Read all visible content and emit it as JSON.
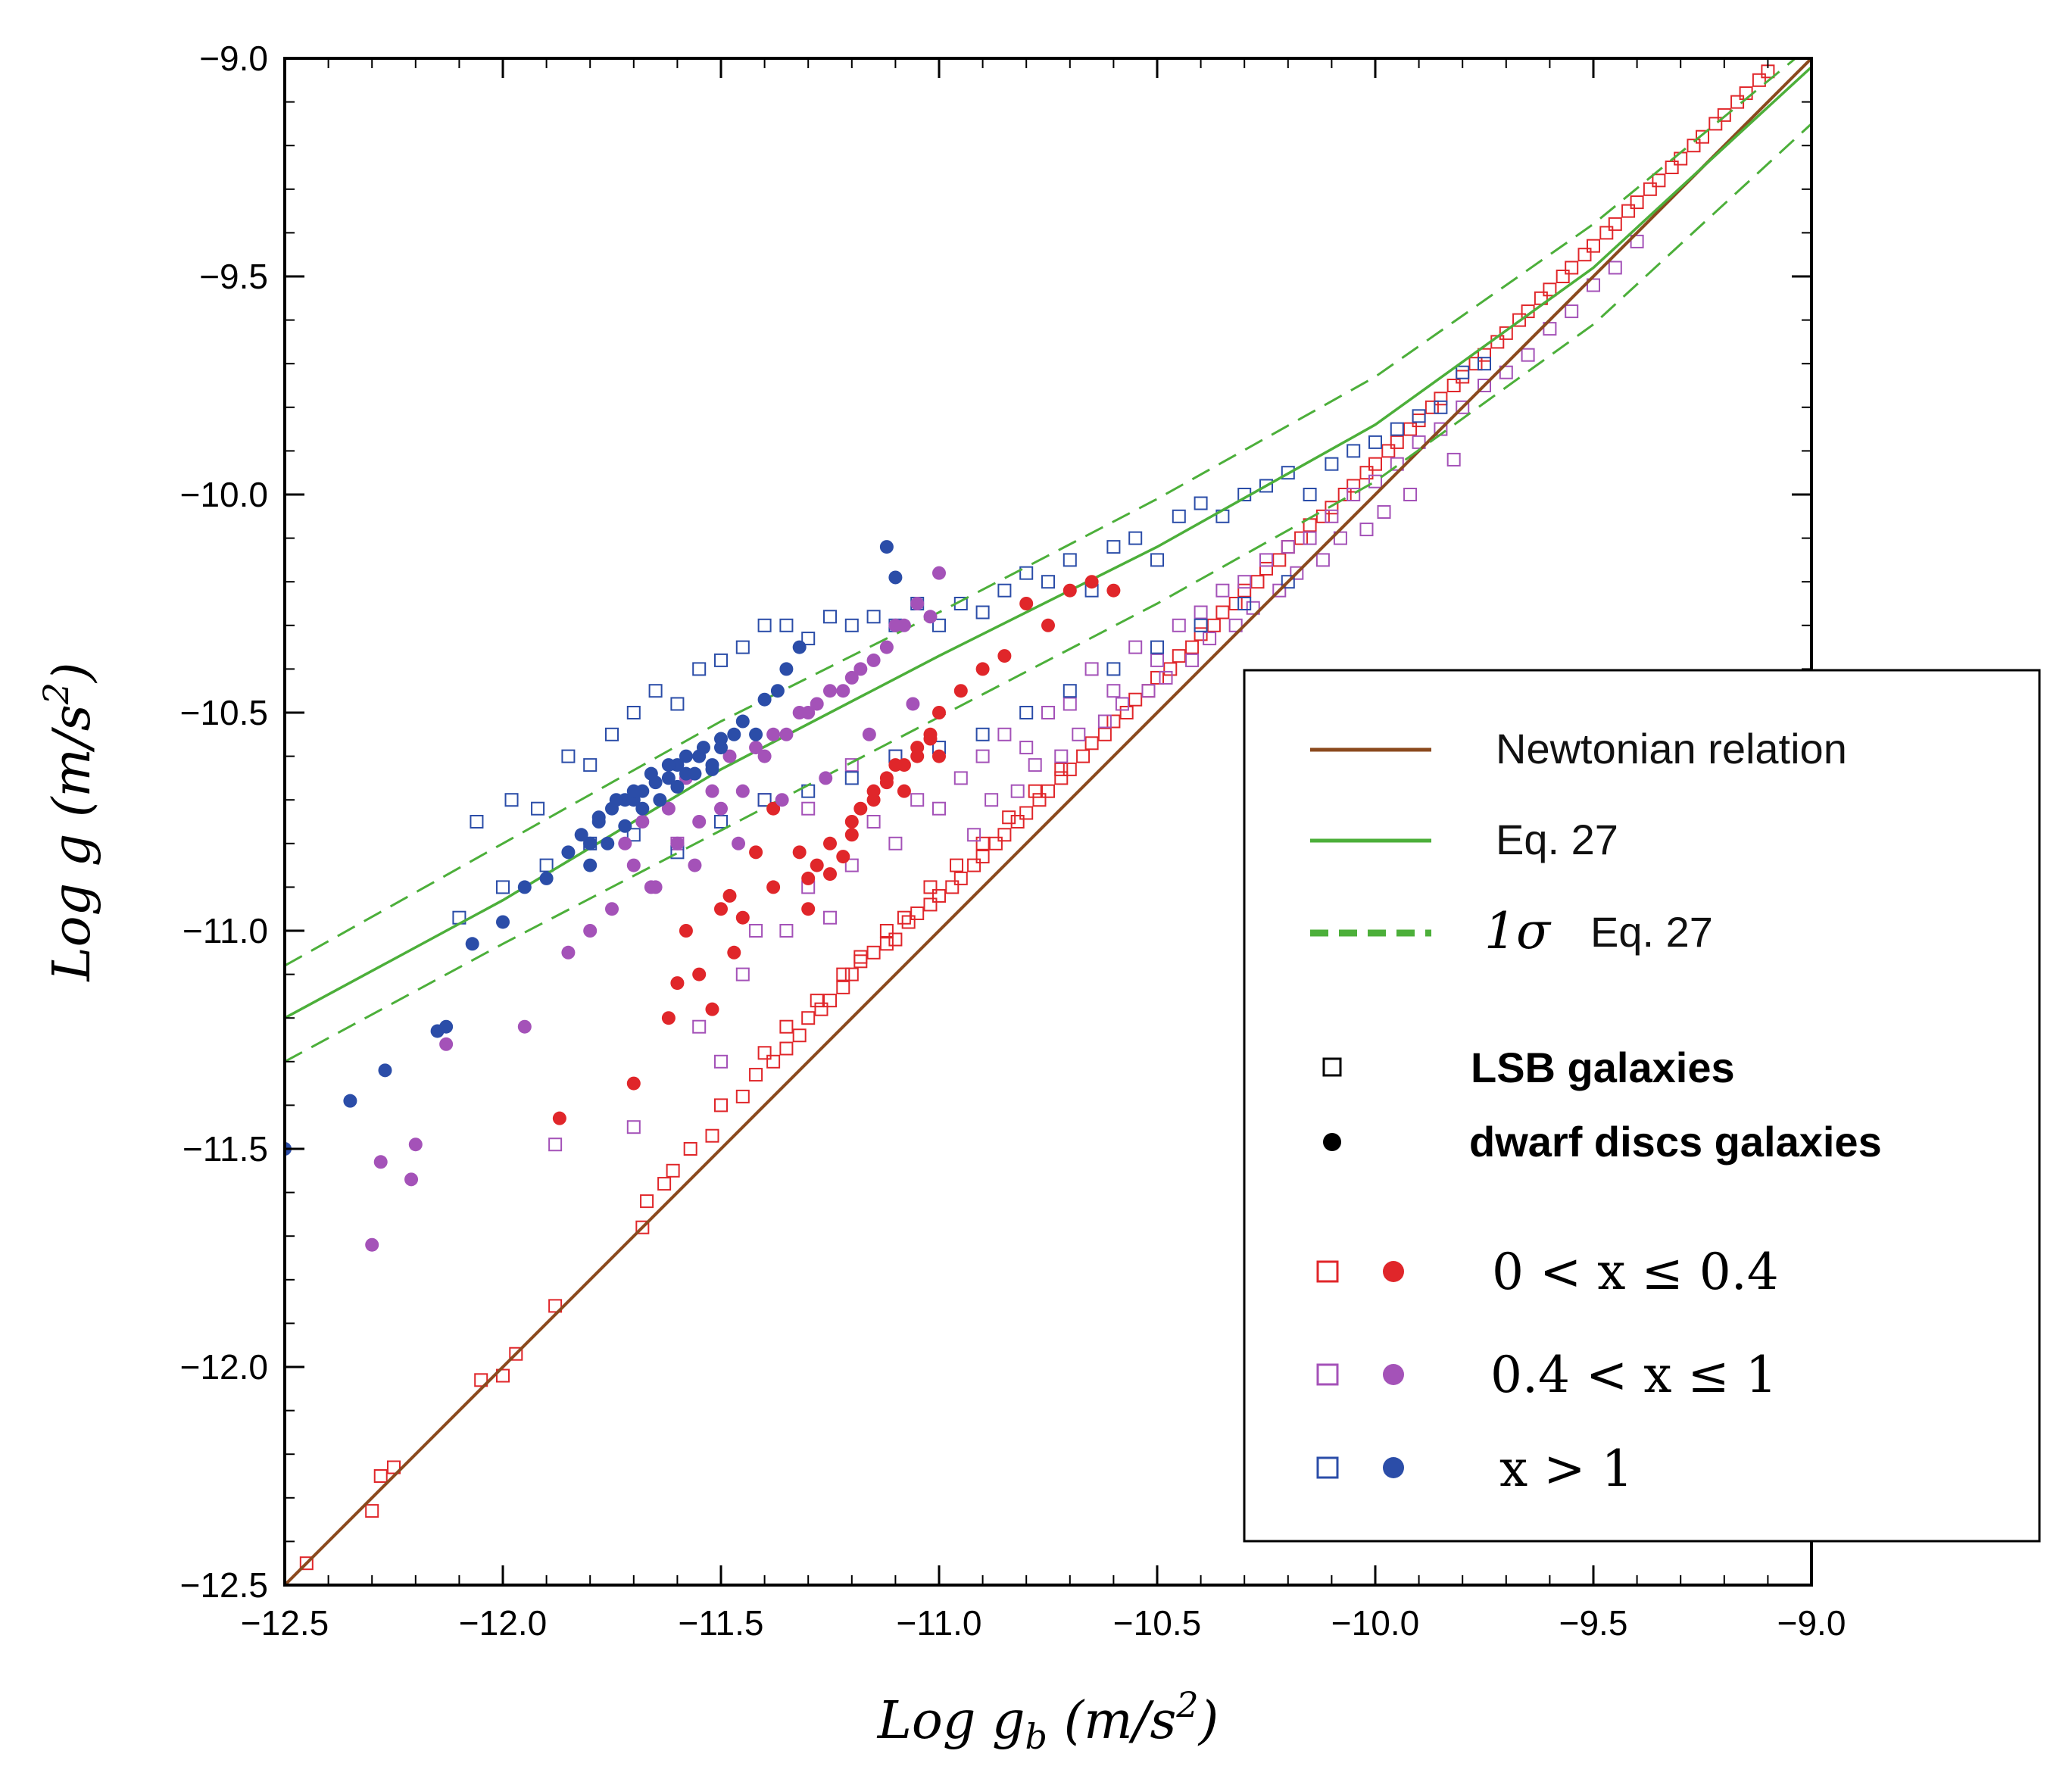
{
  "chart_data": {
    "type": "scatter",
    "xlabel": "Log g_b (m/s^2)",
    "ylabel": "Log g (m/s^2)",
    "xlabel_parts": {
      "main": "Log g",
      "sub": "b",
      "unit_open": " (m/s",
      "sup": "2",
      "unit_close": ")"
    },
    "ylabel_parts": {
      "main": "Log g",
      "unit_open": " (m/s",
      "sup": "2",
      "unit_close": ")"
    },
    "xlim": [
      -12.5,
      -9.0
    ],
    "ylim": [
      -12.5,
      -9.0
    ],
    "x_ticks": [
      -12.5,
      -12.0,
      -11.5,
      -11.0,
      -10.5,
      -10.0,
      -9.5,
      -9.0
    ],
    "y_ticks": [
      -12.5,
      -12.0,
      -11.5,
      -11.0,
      -10.5,
      -10.0,
      -9.5,
      -9.0
    ],
    "x_tick_labels": [
      "−12.5",
      "−12.0",
      "−11.5",
      "−11.0",
      "−10.5",
      "−10.0",
      "−9.5",
      "−9.0"
    ],
    "y_tick_labels": [
      "−12.5",
      "−12.0",
      "−11.5",
      "−11.0",
      "−10.5",
      "−10.0",
      "−9.5",
      "−9.0"
    ],
    "grid": false,
    "legend_position": "right-middle",
    "colors": {
      "newtonian": "#8B4A1E",
      "eq27": "#4CAF3A",
      "red": "#E0262A",
      "purple": "#A452B8",
      "blue": "#2B4DA8"
    },
    "curves": {
      "newtonian": {
        "name": "Newtonian relation",
        "x": [
          -12.5,
          -9.0
        ],
        "y": [
          -12.5,
          -9.0
        ]
      },
      "eq27": {
        "name": "Eq. 27",
        "x": [
          -12.5,
          -12.0,
          -11.5,
          -11.0,
          -10.5,
          -10.0,
          -9.5,
          -9.0
        ],
        "y": [
          -11.2,
          -10.93,
          -10.63,
          -10.37,
          -10.12,
          -9.84,
          -9.48,
          -9.02
        ]
      },
      "eq27_upper": {
        "name": "1σ Eq. 27",
        "x": [
          -12.5,
          -12.0,
          -11.5,
          -11.0,
          -10.5,
          -10.0,
          -9.5,
          -9.0
        ],
        "y": [
          -11.08,
          -10.8,
          -10.52,
          -10.27,
          -10.01,
          -9.73,
          -9.38,
          -8.97
        ]
      },
      "eq27_lower": {
        "name": "1σ Eq. 27",
        "x": [
          -12.5,
          -12.0,
          -11.5,
          -11.0,
          -10.5,
          -10.0,
          -9.5,
          -9.0
        ],
        "y": [
          -11.3,
          -11.03,
          -10.77,
          -10.51,
          -10.25,
          -9.97,
          -9.61,
          -9.15
        ]
      }
    },
    "series": [
      {
        "name": "LSB galaxies, 0<x≤0.4",
        "marker": "open-square",
        "color": "red",
        "x": [
          -12.45,
          -12.3,
          -12.25,
          -12.28,
          -12.05,
          -12.0,
          -11.97,
          -11.88,
          -11.68,
          -11.67,
          -11.63,
          -11.61,
          -11.57,
          -11.52,
          -11.5,
          -11.45,
          -11.42,
          -11.38,
          -11.35,
          -11.32,
          -11.3,
          -11.27,
          -11.25,
          -11.22,
          -11.2,
          -11.18,
          -11.15,
          -11.12,
          -11.1,
          -11.07,
          -11.05,
          -11.02,
          -11.0,
          -10.97,
          -10.95,
          -10.92,
          -10.9,
          -10.87,
          -10.85,
          -10.82,
          -10.8,
          -10.77,
          -10.75,
          -10.72,
          -10.7,
          -10.67,
          -10.65,
          -10.62,
          -10.6,
          -10.57,
          -10.55,
          -10.52,
          -10.5,
          -10.47,
          -10.45,
          -10.42,
          -10.4,
          -10.37,
          -10.35,
          -10.32,
          -10.3,
          -10.27,
          -10.25,
          -10.22,
          -10.2,
          -10.17,
          -10.15,
          -10.12,
          -10.1,
          -10.07,
          -10.05,
          -10.02,
          -10.0,
          -9.97,
          -9.95,
          -9.92,
          -9.9,
          -9.87,
          -9.85,
          -9.82,
          -9.8,
          -9.77,
          -9.75,
          -9.72,
          -9.7,
          -9.67,
          -9.65,
          -9.62,
          -9.6,
          -9.57,
          -9.55,
          -9.52,
          -9.5,
          -9.47,
          -9.45,
          -9.42,
          -9.4,
          -9.37,
          -9.35,
          -9.32,
          -9.3,
          -9.27,
          -9.25,
          -9.22,
          -9.2,
          -9.17,
          -9.15,
          -9.12,
          -9.1,
          -11.4,
          -11.35,
          -11.28,
          -11.22,
          -11.18,
          -11.12,
          -11.08,
          -11.02,
          -10.96,
          -10.9,
          -10.84,
          -10.78,
          -10.72
        ],
        "y": [
          -12.45,
          -12.33,
          -12.23,
          -12.25,
          -12.03,
          -12.02,
          -11.97,
          -11.86,
          -11.68,
          -11.62,
          -11.58,
          -11.55,
          -11.5,
          -11.47,
          -11.4,
          -11.38,
          -11.33,
          -11.3,
          -11.27,
          -11.24,
          -11.2,
          -11.18,
          -11.16,
          -11.13,
          -11.1,
          -11.07,
          -11.05,
          -11.03,
          -11.02,
          -10.98,
          -10.96,
          -10.94,
          -10.92,
          -10.9,
          -10.88,
          -10.85,
          -10.83,
          -10.8,
          -10.78,
          -10.75,
          -10.73,
          -10.7,
          -10.68,
          -10.65,
          -10.63,
          -10.6,
          -10.57,
          -10.55,
          -10.52,
          -10.5,
          -10.47,
          -10.45,
          -10.42,
          -10.4,
          -10.37,
          -10.35,
          -10.32,
          -10.3,
          -10.27,
          -10.25,
          -10.22,
          -10.2,
          -10.17,
          -10.15,
          -10.12,
          -10.1,
          -10.07,
          -10.05,
          -10.03,
          -10.0,
          -9.98,
          -9.95,
          -9.93,
          -9.9,
          -9.88,
          -9.85,
          -9.83,
          -9.8,
          -9.78,
          -9.75,
          -9.73,
          -9.7,
          -9.68,
          -9.65,
          -9.63,
          -9.6,
          -9.58,
          -9.55,
          -9.53,
          -9.5,
          -9.48,
          -9.45,
          -9.43,
          -9.4,
          -9.38,
          -9.35,
          -9.33,
          -9.3,
          -9.28,
          -9.25,
          -9.23,
          -9.2,
          -9.18,
          -9.15,
          -9.13,
          -9.1,
          -9.08,
          -9.05,
          -9.03,
          -11.28,
          -11.22,
          -11.16,
          -11.1,
          -11.06,
          -11.0,
          -10.97,
          -10.9,
          -10.85,
          -10.8,
          -10.74,
          -10.68,
          -10.63
        ]
      },
      {
        "name": "LSB galaxies, 0.4<x≤1",
        "marker": "open-square",
        "color": "purple",
        "x": [
          -11.88,
          -11.7,
          -11.55,
          -11.5,
          -11.45,
          -11.42,
          -11.35,
          -11.3,
          -11.25,
          -11.2,
          -11.15,
          -11.1,
          -11.05,
          -11.0,
          -10.95,
          -10.9,
          -10.85,
          -10.8,
          -10.75,
          -10.7,
          -10.65,
          -10.6,
          -10.55,
          -10.5,
          -10.45,
          -10.4,
          -10.35,
          -10.3,
          -10.25,
          -10.2,
          -10.15,
          -10.1,
          -10.05,
          -10.0,
          -9.95,
          -9.9,
          -9.85,
          -9.8,
          -9.75,
          -9.7,
          -9.65,
          -9.6,
          -9.55,
          -9.5,
          -9.45,
          -9.4,
          -10.92,
          -10.82,
          -10.72,
          -10.62,
          -10.52,
          -10.42,
          -10.32,
          -10.22,
          -10.12,
          -10.02,
          -9.92,
          -9.82,
          -10.88,
          -10.78,
          -10.68,
          -10.58,
          -10.48,
          -10.38,
          -10.28,
          -10.18,
          -10.08,
          -9.98,
          -11.6,
          -11.5,
          -11.4,
          -11.3,
          -11.2,
          -11.1
        ],
        "y": [
          -11.49,
          -11.45,
          -11.22,
          -11.3,
          -11.1,
          -11.0,
          -11.0,
          -10.9,
          -10.97,
          -10.85,
          -10.75,
          -10.8,
          -10.7,
          -10.72,
          -10.65,
          -10.6,
          -10.55,
          -10.58,
          -10.5,
          -10.48,
          -10.4,
          -10.45,
          -10.35,
          -10.38,
          -10.3,
          -10.27,
          -10.22,
          -10.2,
          -10.15,
          -10.12,
          -10.1,
          -10.05,
          -10.0,
          -9.97,
          -9.93,
          -9.88,
          -9.85,
          -9.8,
          -9.75,
          -9.72,
          -9.68,
          -9.62,
          -9.58,
          -9.52,
          -9.48,
          -9.42,
          -10.78,
          -10.68,
          -10.6,
          -10.52,
          -10.45,
          -10.38,
          -10.3,
          -10.22,
          -10.15,
          -10.08,
          -10.0,
          -9.92,
          -10.7,
          -10.62,
          -10.55,
          -10.48,
          -10.42,
          -10.33,
          -10.26,
          -10.18,
          -10.1,
          -10.04,
          -10.8,
          -10.75,
          -10.7,
          -10.72,
          -10.62,
          -10.6
        ]
      },
      {
        "name": "LSB galaxies, x>1",
        "marker": "open-square",
        "color": "blue",
        "x": [
          -12.1,
          -12.06,
          -11.98,
          -11.92,
          -11.85,
          -11.8,
          -11.75,
          -11.7,
          -11.65,
          -11.6,
          -11.55,
          -11.5,
          -11.45,
          -11.4,
          -11.35,
          -11.3,
          -11.25,
          -11.2,
          -11.15,
          -11.1,
          -11.05,
          -11.0,
          -10.95,
          -10.9,
          -10.85,
          -10.8,
          -10.75,
          -10.7,
          -10.65,
          -10.6,
          -10.55,
          -10.5,
          -10.45,
          -10.4,
          -10.35,
          -10.3,
          -10.25,
          -10.2,
          -10.15,
          -10.1,
          -10.05,
          -10.0,
          -9.95,
          -9.9,
          -9.85,
          -9.8,
          -9.75,
          -12.0,
          -11.9,
          -11.8,
          -11.7,
          -11.6,
          -11.5,
          -11.4,
          -11.3,
          -11.2,
          -11.1,
          -11.0,
          -10.9,
          -10.8,
          -10.7,
          -10.6,
          -10.5,
          -10.4,
          -10.3,
          -10.2
        ],
        "y": [
          -10.97,
          -10.75,
          -10.7,
          -10.72,
          -10.6,
          -10.62,
          -10.55,
          -10.5,
          -10.45,
          -10.48,
          -10.4,
          -10.38,
          -10.35,
          -10.3,
          -10.3,
          -10.33,
          -10.28,
          -10.3,
          -10.28,
          -10.3,
          -10.25,
          -10.3,
          -10.25,
          -10.27,
          -10.22,
          -10.18,
          -10.2,
          -10.15,
          -10.22,
          -10.12,
          -10.1,
          -10.15,
          -10.05,
          -10.02,
          -10.05,
          -10.0,
          -9.98,
          -9.95,
          -10.0,
          -9.93,
          -9.9,
          -9.88,
          -9.85,
          -9.82,
          -9.8,
          -9.72,
          -9.7,
          -10.9,
          -10.85,
          -10.8,
          -10.78,
          -10.82,
          -10.75,
          -10.7,
          -10.68,
          -10.65,
          -10.6,
          -10.58,
          -10.55,
          -10.5,
          -10.45,
          -10.4,
          -10.35,
          -10.3,
          -10.25,
          -10.2
        ]
      },
      {
        "name": "dwarf discs galaxies, 0<x≤0.4",
        "marker": "filled-circle",
        "color": "red",
        "x": [
          -11.87,
          -11.7,
          -11.58,
          -11.5,
          -11.48,
          -11.45,
          -11.42,
          -11.38,
          -11.32,
          -11.3,
          -11.28,
          -11.25,
          -11.22,
          -11.2,
          -11.18,
          -11.15,
          -11.12,
          -11.1,
          -11.08,
          -11.05,
          -11.02,
          -11.0,
          -10.95,
          -10.9,
          -10.85,
          -10.8,
          -10.75,
          -10.7,
          -10.65,
          -10.6,
          -11.25,
          -11.2,
          -11.15,
          -11.12,
          -11.08,
          -11.05,
          -11.02,
          -11.0,
          -11.38,
          -11.3
        ],
        "y": [
          -11.43,
          -11.35,
          -11.0,
          -10.95,
          -10.92,
          -10.97,
          -10.82,
          -10.72,
          -10.82,
          -10.95,
          -10.85,
          -10.87,
          -10.83,
          -10.78,
          -10.72,
          -10.7,
          -10.66,
          -10.62,
          -10.68,
          -10.6,
          -10.55,
          -10.5,
          -10.45,
          -10.4,
          -10.37,
          -10.25,
          -10.3,
          -10.22,
          -10.2,
          -10.22,
          -10.8,
          -10.75,
          -10.68,
          -10.65,
          -10.62,
          -10.58,
          -10.56,
          -10.6,
          -10.9,
          -10.88
        ],
        "extra": {
          "x": [
            -11.6,
            -11.52,
            -11.47,
            -11.62,
            -11.55
          ],
          "y": [
            -11.12,
            -11.18,
            -11.05,
            -11.2,
            -11.1
          ]
        }
      },
      {
        "name": "dwarf discs galaxies, 0.4<x≤1",
        "marker": "filled-circle",
        "color": "purple",
        "x": [
          -12.3,
          -12.28,
          -12.2,
          -12.21,
          -12.13,
          -11.95,
          -11.85,
          -11.8,
          -11.75,
          -11.7,
          -11.65,
          -11.6,
          -11.55,
          -11.5,
          -11.45,
          -11.4,
          -11.35,
          -11.3,
          -11.25,
          -11.2,
          -11.15,
          -11.1,
          -11.05,
          -11.0,
          -11.72,
          -11.68,
          -11.62,
          -11.58,
          -11.52,
          -11.48,
          -11.42,
          -11.38,
          -11.32,
          -11.28,
          -11.22,
          -11.18,
          -11.12,
          -11.08,
          -11.02,
          -11.66,
          -11.56,
          -11.46,
          -11.36,
          -11.26,
          -11.16,
          -11.06
        ],
        "y": [
          -11.72,
          -11.53,
          -11.49,
          -11.57,
          -11.26,
          -11.22,
          -11.05,
          -11.0,
          -10.95,
          -10.85,
          -10.9,
          -10.8,
          -10.75,
          -10.72,
          -10.68,
          -10.6,
          -10.55,
          -10.5,
          -10.45,
          -10.42,
          -10.38,
          -10.3,
          -10.25,
          -10.18,
          -10.8,
          -10.75,
          -10.72,
          -10.65,
          -10.68,
          -10.6,
          -10.58,
          -10.55,
          -10.5,
          -10.48,
          -10.45,
          -10.4,
          -10.35,
          -10.3,
          -10.28,
          -10.9,
          -10.85,
          -10.8,
          -10.7,
          -10.65,
          -10.55,
          -10.48
        ]
      },
      {
        "name": "dwarf discs galaxies, x>1",
        "marker": "filled-circle",
        "color": "blue",
        "x": [
          -12.5,
          -12.35,
          -12.27,
          -12.15,
          -12.13,
          -12.07,
          -12.0,
          -11.95,
          -11.9,
          -11.85,
          -11.8,
          -11.78,
          -11.75,
          -11.72,
          -11.7,
          -11.68,
          -11.65,
          -11.62,
          -11.6,
          -11.58,
          -11.55,
          -11.52,
          -11.5,
          -11.47,
          -11.45,
          -11.42,
          -11.4,
          -11.37,
          -11.35,
          -11.32,
          -11.12,
          -11.1,
          -11.82,
          -11.78,
          -11.74,
          -11.7,
          -11.66,
          -11.62,
          -11.58,
          -11.54,
          -11.5,
          -11.8,
          -11.76,
          -11.72,
          -11.68,
          -11.64,
          -11.6,
          -11.56,
          -11.52
        ],
        "y": [
          -11.5,
          -11.39,
          -11.32,
          -11.23,
          -11.22,
          -11.03,
          -10.98,
          -10.9,
          -10.88,
          -10.82,
          -10.8,
          -10.75,
          -10.72,
          -10.7,
          -10.7,
          -10.68,
          -10.66,
          -10.65,
          -10.62,
          -10.64,
          -10.6,
          -10.63,
          -10.58,
          -10.55,
          -10.52,
          -10.55,
          -10.47,
          -10.45,
          -10.4,
          -10.35,
          -10.12,
          -10.19,
          -10.78,
          -10.74,
          -10.7,
          -10.68,
          -10.64,
          -10.62,
          -10.6,
          -10.58,
          -10.56,
          -10.85,
          -10.8,
          -10.76,
          -10.72,
          -10.7,
          -10.67,
          -10.64,
          -10.62
        ]
      }
    ],
    "legend": {
      "lines": [
        {
          "key": "newtonian",
          "label": "Newtonian relation",
          "style": "solid"
        },
        {
          "key": "eq27",
          "label": "Eq. 27",
          "style": "solid"
        },
        {
          "key": "eq27",
          "label": "Eq. 27",
          "prefix": "1σ",
          "style": "dashed"
        }
      ],
      "marker_types": [
        {
          "marker": "open-square",
          "label": "LSB  galaxies"
        },
        {
          "marker": "filled-circle",
          "label": "dwarf discs  galaxies"
        }
      ],
      "ranges": [
        {
          "color": "red",
          "label": "0 < x ≤ 0.4"
        },
        {
          "color": "purple",
          "label": "0.4 < x ≤ 1"
        },
        {
          "color": "blue",
          "label": "x > 1"
        }
      ]
    }
  }
}
